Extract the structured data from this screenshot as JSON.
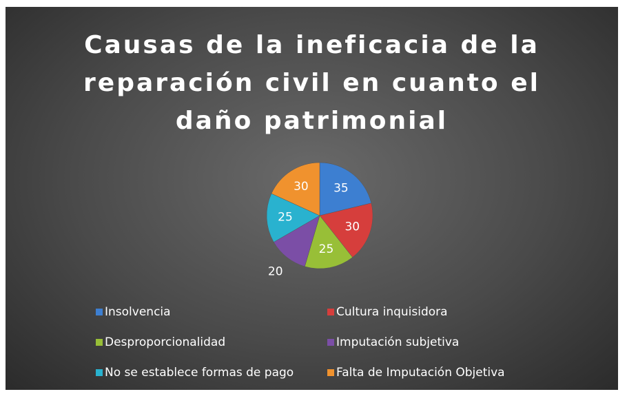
{
  "chart_data": {
    "type": "pie",
    "title": "Causas de la ineficacia de la reparación civil en cuanto el daño patrimonial",
    "categories": [
      "Insolvencia",
      "Cultura inquisidora",
      "Desproporcionalidad",
      "Imputación subjetiva",
      "No se establece formas de pago",
      "Falta de Imputación Objetiva"
    ],
    "values": [
      35,
      30,
      25,
      20,
      25,
      30
    ],
    "colors": [
      "#3d7fd1",
      "#d63e3c",
      "#98bf37",
      "#7b4ea6",
      "#29b2cf",
      "#f0922e"
    ],
    "legend": "bottom"
  }
}
